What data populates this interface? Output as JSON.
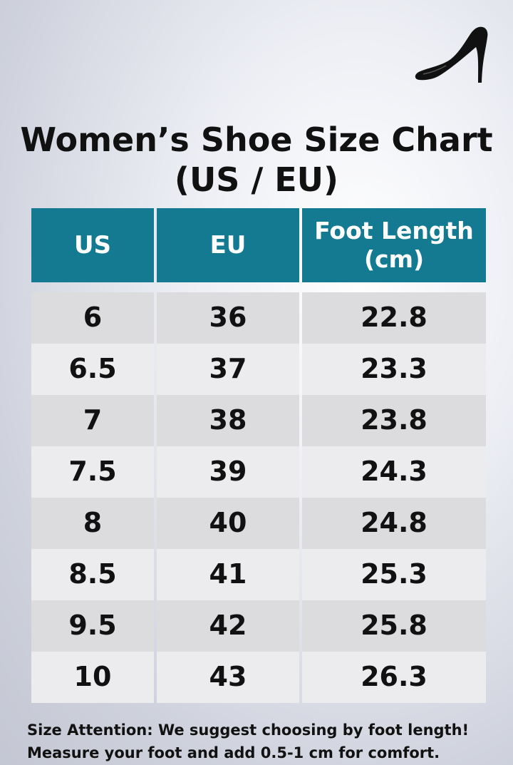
{
  "title": {
    "line1": "Women’s Shoe Size Chart",
    "line2": "(US / EU)"
  },
  "icon": "high-heel-shoe-icon",
  "colors": {
    "header_bg": "#137a92",
    "row_dark": "#dcdcdf",
    "row_light": "#ececee"
  },
  "table": {
    "headers": {
      "us": "US",
      "eu": "EU",
      "foot_length_line1": "Foot Length",
      "foot_length_line2": "(cm)"
    },
    "rows": [
      {
        "us": "6",
        "eu": "36",
        "cm": "22.8"
      },
      {
        "us": "6.5",
        "eu": "37",
        "cm": "23.3"
      },
      {
        "us": "7",
        "eu": "38",
        "cm": "23.8"
      },
      {
        "us": "7.5",
        "eu": "39",
        "cm": "24.3"
      },
      {
        "us": "8",
        "eu": "40",
        "cm": "24.8"
      },
      {
        "us": "8.5",
        "eu": "41",
        "cm": "25.3"
      },
      {
        "us": "9.5",
        "eu": "42",
        "cm": "25.8"
      },
      {
        "us": "10",
        "eu": "43",
        "cm": "26.3"
      }
    ]
  },
  "note": {
    "line1": "Size Attention: We suggest choosing by foot length!",
    "line2": "Measure your foot and add 0.5-1 cm for comfort."
  }
}
